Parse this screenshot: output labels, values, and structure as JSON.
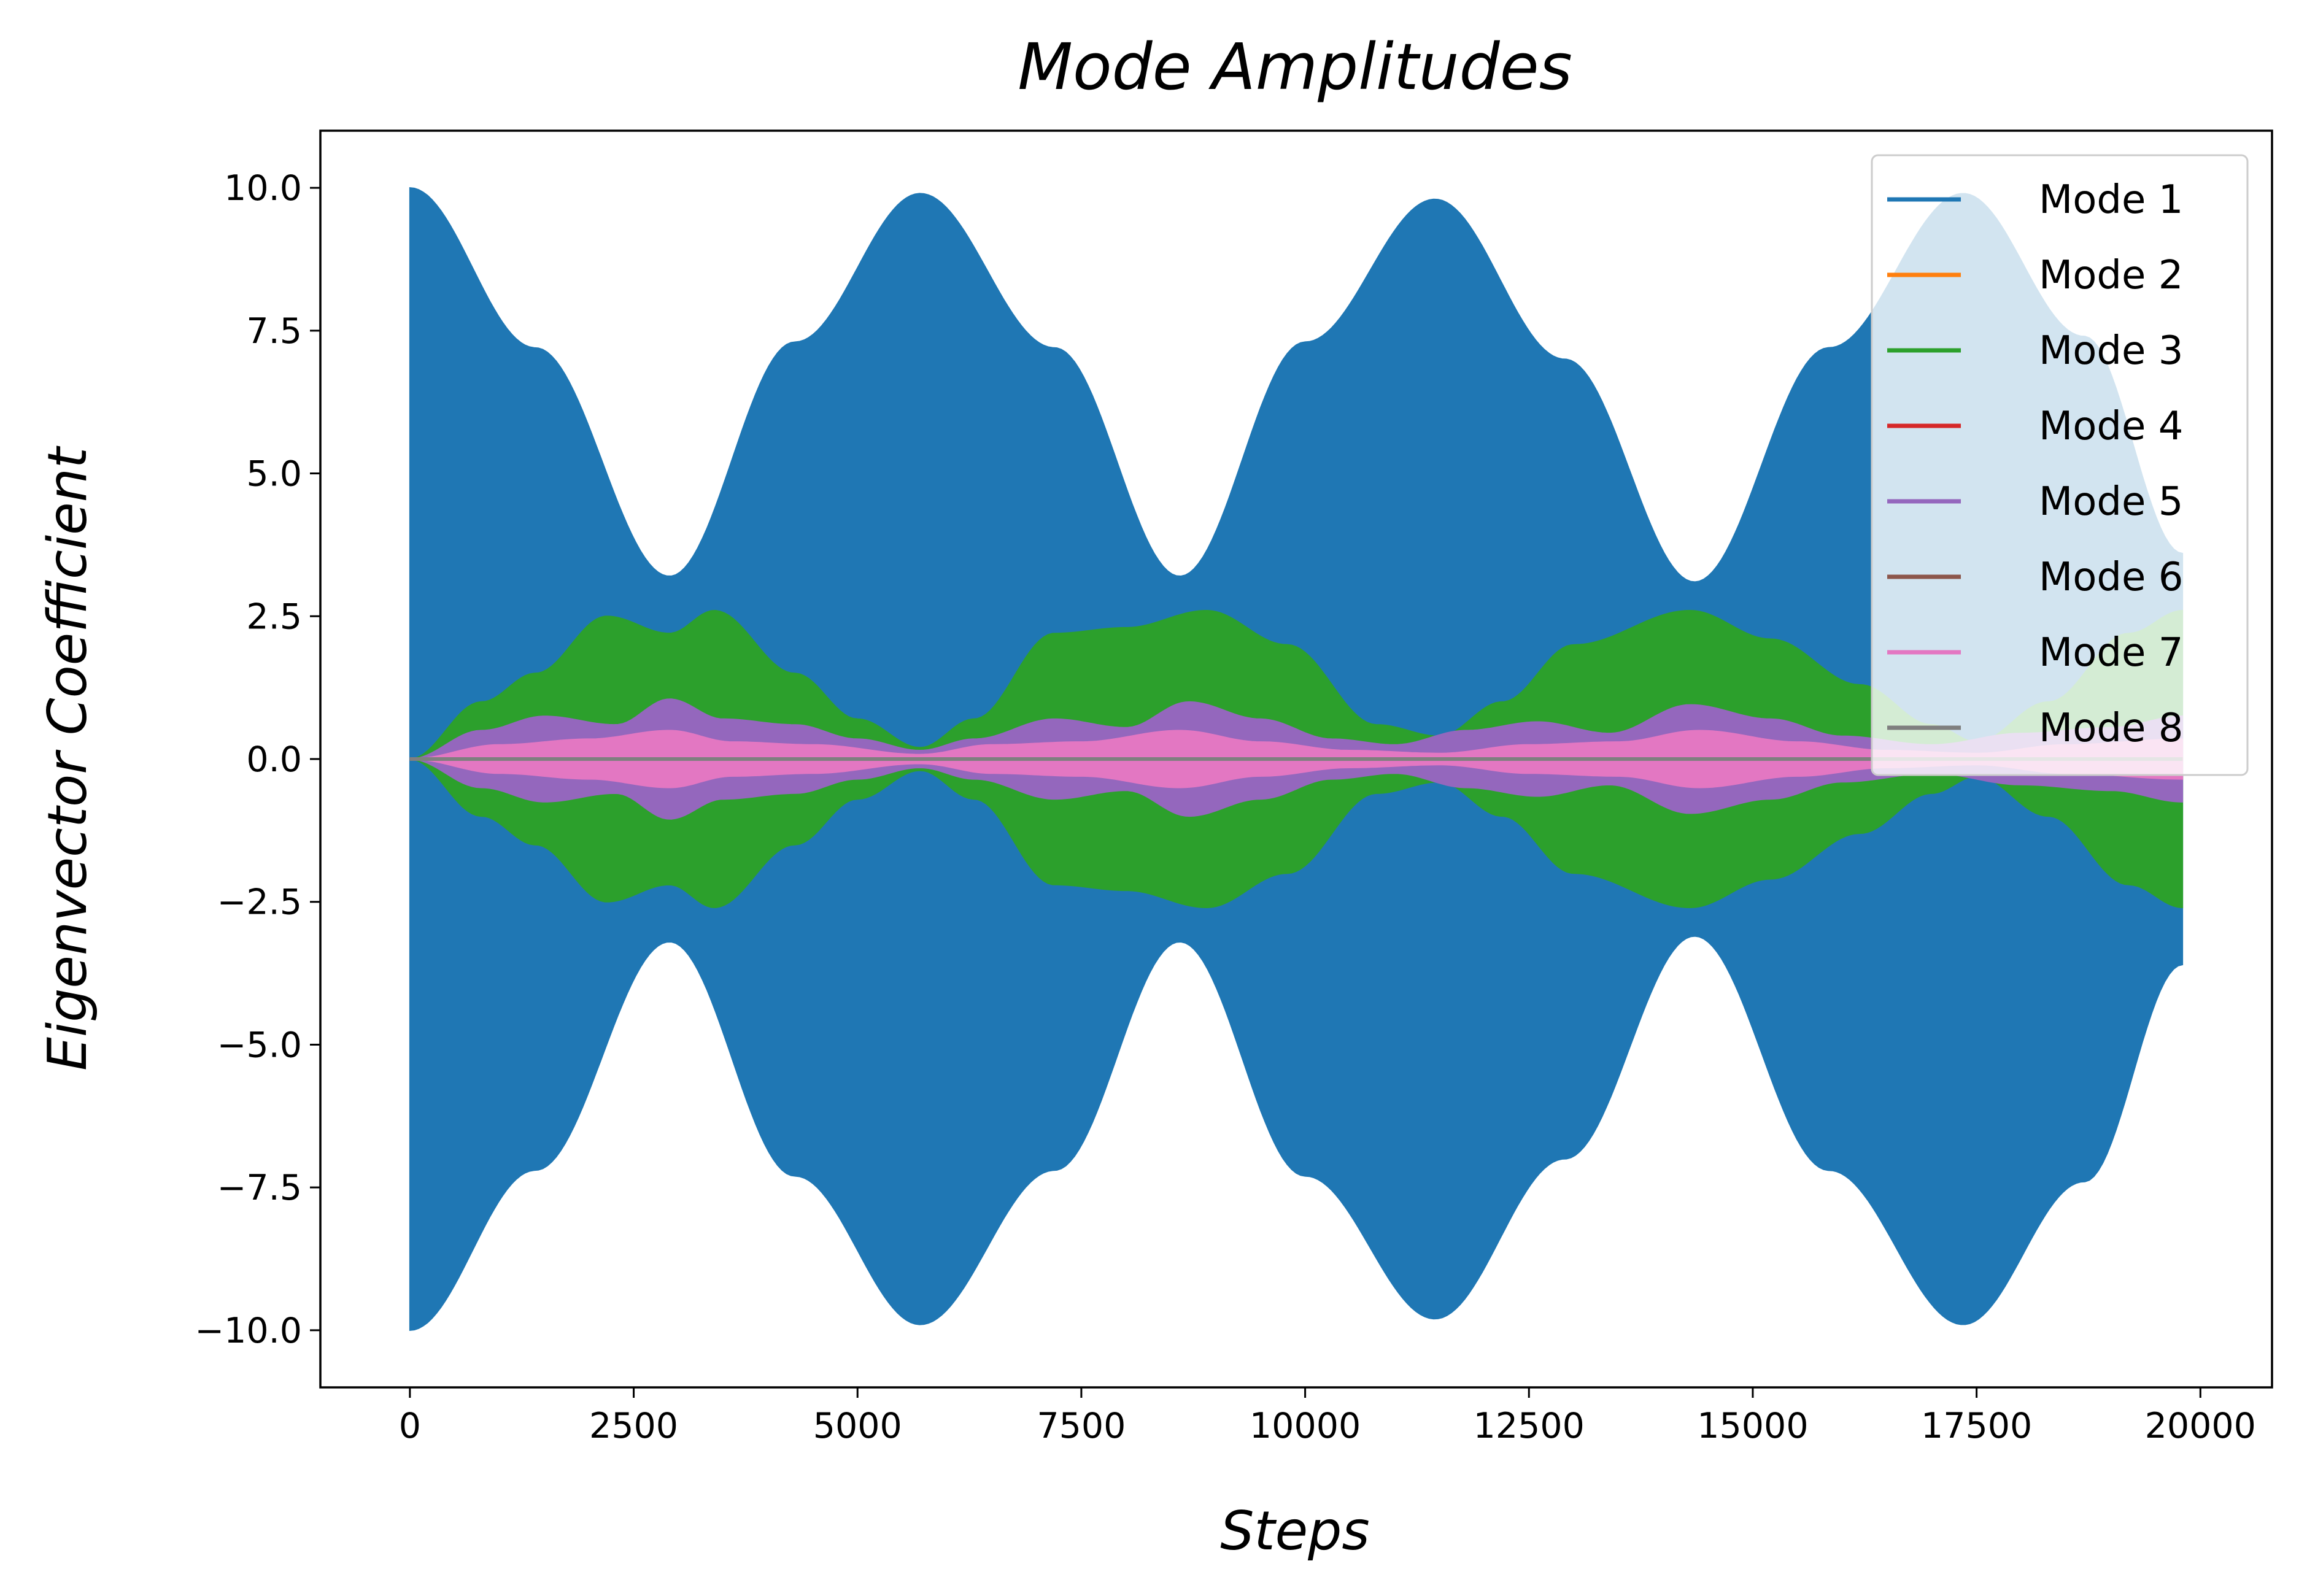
{
  "chart_data": {
    "type": "area",
    "title": "Mode Amplitudes",
    "xlabel": "Steps",
    "ylabel": "Eigenvector Coefficient",
    "xlim": [
      -1000,
      20800
    ],
    "ylim": [
      -11,
      11
    ],
    "x_ticks": [
      0,
      2500,
      5000,
      7500,
      10000,
      12500,
      15000,
      17500,
      20000
    ],
    "x_tick_labels": [
      "0",
      "2500",
      "5000",
      "7500",
      "10000",
      "12500",
      "15000",
      "17500",
      "20000"
    ],
    "y_ticks": [
      10,
      7.5,
      5,
      2.5,
      0,
      -2.5,
      -5,
      -7.5,
      -10
    ],
    "y_tick_labels": [
      "10.0",
      "7.5",
      "5.0",
      "2.5",
      "0.0",
      "−2.5",
      "−5.0",
      "−7.5",
      "−10.0"
    ],
    "grid": false,
    "legend_position": "top-right",
    "x_range": [
      0,
      19800
    ],
    "series": [
      {
        "name": "Mode 1",
        "color": "#1f77b4",
        "envelope": {
          "x": [
            0,
            1400,
            2900,
            4300,
            5700,
            7200,
            8600,
            10000,
            11450,
            12900,
            14350,
            15850,
            17350,
            18700,
            19800
          ],
          "amplitude": [
            10.0,
            7.2,
            3.2,
            7.3,
            9.9,
            7.2,
            3.2,
            7.3,
            9.8,
            7.0,
            3.1,
            7.2,
            9.9,
            7.4,
            3.6
          ]
        }
      },
      {
        "name": "Mode 2",
        "color": "#ff7f0e",
        "envelope": {
          "x": [
            0,
            19800
          ],
          "amplitude": [
            0,
            0
          ]
        }
      },
      {
        "name": "Mode 3",
        "color": "#2ca02c",
        "envelope": {
          "x": [
            0,
            800,
            1400,
            2200,
            2900,
            3400,
            4300,
            5000,
            5700,
            6300,
            7200,
            8000,
            8900,
            9800,
            10800,
            11500,
            12200,
            13000,
            14300,
            15200,
            16200,
            17000,
            17500,
            18300,
            19200,
            19800
          ],
          "amplitude": [
            0,
            1.0,
            1.5,
            2.5,
            2.2,
            2.6,
            1.5,
            0.7,
            0.2,
            0.7,
            2.2,
            2.3,
            2.6,
            2.0,
            0.6,
            0.4,
            1.0,
            2.0,
            2.6,
            2.1,
            1.3,
            0.6,
            0.3,
            1.0,
            2.2,
            2.6
          ]
        }
      },
      {
        "name": "Mode 4",
        "color": "#d62728",
        "envelope": {
          "x": [
            0,
            19800
          ],
          "amplitude": [
            0,
            0
          ]
        }
      },
      {
        "name": "Mode 5",
        "color": "#9467bd",
        "envelope": {
          "x": [
            0,
            800,
            1500,
            2300,
            2900,
            3500,
            4300,
            5000,
            5700,
            6300,
            7200,
            8000,
            8700,
            9500,
            10300,
            11000,
            11800,
            12600,
            13400,
            14300,
            15200,
            16000,
            17000,
            18000,
            19000,
            19800
          ],
          "amplitude": [
            0,
            0.5,
            0.75,
            0.6,
            1.05,
            0.7,
            0.6,
            0.35,
            0.15,
            0.35,
            0.7,
            0.55,
            1.0,
            0.7,
            0.35,
            0.25,
            0.5,
            0.65,
            0.45,
            0.95,
            0.7,
            0.4,
            0.25,
            0.45,
            0.55,
            0.75
          ]
        }
      },
      {
        "name": "Mode 6",
        "color": "#8c564b",
        "envelope": {
          "x": [
            0,
            19800
          ],
          "amplitude": [
            0,
            0
          ]
        }
      },
      {
        "name": "Mode 7",
        "color": "#e377c2",
        "envelope": {
          "x": [
            0,
            1000,
            2000,
            2900,
            3600,
            4500,
            5700,
            6500,
            7500,
            8600,
            9500,
            10500,
            11500,
            12500,
            13500,
            14400,
            15500,
            16500,
            17500,
            18500,
            19800
          ],
          "amplitude": [
            0,
            0.25,
            0.35,
            0.5,
            0.3,
            0.25,
            0.08,
            0.25,
            0.3,
            0.5,
            0.3,
            0.15,
            0.1,
            0.25,
            0.3,
            0.5,
            0.3,
            0.15,
            0.1,
            0.25,
            0.35
          ]
        }
      },
      {
        "name": "Mode 8",
        "color": "#7f7f7f",
        "envelope": {
          "x": [
            0,
            19800
          ],
          "amplitude": [
            0,
            0
          ]
        }
      }
    ]
  }
}
